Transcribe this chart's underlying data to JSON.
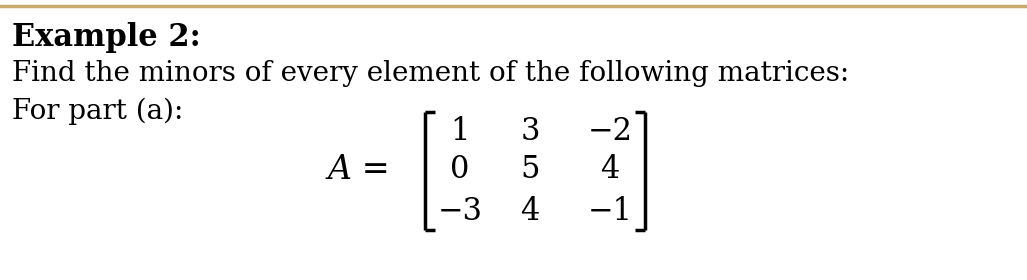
{
  "title_bold": "Example 2:",
  "line1": "Find the minors of every element of the following matrices:",
  "line2": "For part (a):",
  "matrix_label": "A =",
  "matrix": [
    [
      "1",
      "3",
      "−2"
    ],
    [
      "0",
      "5",
      "4"
    ],
    [
      "−3",
      "4",
      "−1"
    ]
  ],
  "bg_color": "#ffffff",
  "text_color": "#000000",
  "font_size_title": 22,
  "font_size_body": 20,
  "font_size_matrix": 22,
  "top_border_color": "#c8a96e"
}
